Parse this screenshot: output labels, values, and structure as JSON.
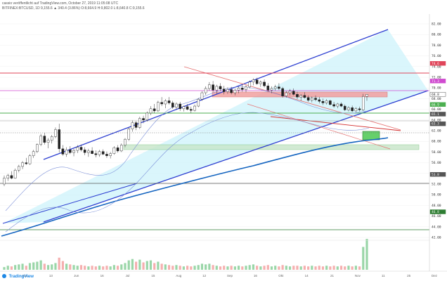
{
  "header": {
    "line1": "cassio veröffentlicht auf TradingView.com, October 27, 2019 11:05:08 UTC",
    "line2": "BITFINEX:BTCUSD, 1D  9,155.6  ▲ 340.4 (3.86%)  O:8,664.9 H:9,802.0 L:8,640.8 C:9,155.6"
  },
  "footer": {
    "brand": "TradingView"
  },
  "chart_data": {
    "type": "candlestick",
    "title": "",
    "price_axis_ticks": [
      82.0,
      80.0,
      78.0,
      76.0,
      74.0,
      72.0,
      70.0,
      68.0,
      66.0,
      64.0,
      62.0,
      60.0,
      58.0,
      56.0,
      54.0,
      52.0,
      50.0,
      48.0,
      46.0,
      44.0,
      42.0
    ],
    "price_markers": [
      {
        "value": 74.6,
        "color": "#e0455a"
      },
      {
        "value": 71.3,
        "color": "#d04bd0"
      },
      {
        "value": 68.8,
        "color": "#ffffff"
      },
      {
        "value": 66.9,
        "color": "#4caf50"
      },
      {
        "value": 65.1,
        "color": "#555555"
      },
      {
        "value": 63.3,
        "color": "#555555"
      },
      {
        "value": 53.8,
        "color": "#555555"
      },
      {
        "value": 46.8,
        "color": "#2e7d32"
      }
    ],
    "x_labels": [
      "Mai",
      "13",
      "Jun",
      "16",
      "Jul",
      "15",
      "Aug",
      "12",
      "Sep",
      "16",
      "Okt",
      "14",
      "21",
      "Nov",
      "11",
      "25",
      "Dez"
    ],
    "candles": [
      [
        52.0,
        53.6,
        51.6,
        53.1
      ],
      [
        53.1,
        53.9,
        52.6,
        53.6
      ],
      [
        53.6,
        54.4,
        52.9,
        53.1
      ],
      [
        53.1,
        54.9,
        53.0,
        54.6
      ],
      [
        54.6,
        55.6,
        54.2,
        55.3
      ],
      [
        55.3,
        56.3,
        54.8,
        56.0
      ],
      [
        56.0,
        56.9,
        55.6,
        55.8
      ],
      [
        55.8,
        57.6,
        55.6,
        57.3
      ],
      [
        57.3,
        58.4,
        56.9,
        58.1
      ],
      [
        58.1,
        59.6,
        57.8,
        59.4
      ],
      [
        59.4,
        61.4,
        59.1,
        61.0
      ],
      [
        61.0,
        61.6,
        59.4,
        59.8
      ],
      [
        59.8,
        60.6,
        58.7,
        60.2
      ],
      [
        60.2,
        61.2,
        59.6,
        60.9
      ],
      [
        60.9,
        62.6,
        60.6,
        62.2
      ],
      [
        62.2,
        63.3,
        57.9,
        58.6
      ],
      [
        58.6,
        59.3,
        57.3,
        57.6
      ],
      [
        57.6,
        58.9,
        57.1,
        58.4
      ],
      [
        58.4,
        59.1,
        57.6,
        57.9
      ],
      [
        57.9,
        58.6,
        57.2,
        58.3
      ],
      [
        58.3,
        59.3,
        57.8,
        58.9
      ],
      [
        58.9,
        59.4,
        58.1,
        58.4
      ],
      [
        58.4,
        58.9,
        57.4,
        57.9
      ],
      [
        57.9,
        58.6,
        57.1,
        58.2
      ],
      [
        58.2,
        58.9,
        57.6,
        57.7
      ],
      [
        57.7,
        58.3,
        57.0,
        57.5
      ],
      [
        57.5,
        58.4,
        57.1,
        58.1
      ],
      [
        58.1,
        58.5,
        57.4,
        57.6
      ],
      [
        57.6,
        58.1,
        56.9,
        57.3
      ],
      [
        57.3,
        58.0,
        56.8,
        57.7
      ],
      [
        57.7,
        59.1,
        57.5,
        58.8
      ],
      [
        58.8,
        59.3,
        57.9,
        58.2
      ],
      [
        58.2,
        59.6,
        58.0,
        59.3
      ],
      [
        59.3,
        60.6,
        58.9,
        60.4
      ],
      [
        60.4,
        62.6,
        60.1,
        62.3
      ],
      [
        62.3,
        63.9,
        61.8,
        63.5
      ],
      [
        63.5,
        63.8,
        62.1,
        62.6
      ],
      [
        62.6,
        64.6,
        62.3,
        64.3
      ],
      [
        64.3,
        64.8,
        63.4,
        64.0
      ],
      [
        64.0,
        65.6,
        63.7,
        65.3
      ],
      [
        65.3,
        66.6,
        64.9,
        66.1
      ],
      [
        66.1,
        67.0,
        65.3,
        65.7
      ],
      [
        65.7,
        67.6,
        65.5,
        67.3
      ],
      [
        67.3,
        68.3,
        66.6,
        67.0
      ],
      [
        67.0,
        67.9,
        66.2,
        67.6
      ],
      [
        67.6,
        68.3,
        66.9,
        67.2
      ],
      [
        67.2,
        67.6,
        66.1,
        66.4
      ],
      [
        66.4,
        67.3,
        65.9,
        67.0
      ],
      [
        67.0,
        67.4,
        65.7,
        66.1
      ],
      [
        66.1,
        66.7,
        65.6,
        66.5
      ],
      [
        66.5,
        67.0,
        65.8,
        66.0
      ],
      [
        66.0,
        66.5,
        65.3,
        65.8
      ],
      [
        65.8,
        66.9,
        65.6,
        66.6
      ],
      [
        66.6,
        68.1,
        66.4,
        67.9
      ],
      [
        67.9,
        69.4,
        67.6,
        69.1
      ],
      [
        69.1,
        70.3,
        68.7,
        69.9
      ],
      [
        69.9,
        71.1,
        69.5,
        70.6
      ],
      [
        70.6,
        71.3,
        69.3,
        69.6
      ],
      [
        69.6,
        70.6,
        68.9,
        70.3
      ],
      [
        70.3,
        70.9,
        69.4,
        69.8
      ],
      [
        69.8,
        70.4,
        68.8,
        69.3
      ],
      [
        69.3,
        70.1,
        68.9,
        69.7
      ],
      [
        69.7,
        70.2,
        68.8,
        69.1
      ],
      [
        69.1,
        69.9,
        68.6,
        69.6
      ],
      [
        69.6,
        70.3,
        69.0,
        70.0
      ],
      [
        70.0,
        70.6,
        69.3,
        69.7
      ],
      [
        69.7,
        70.5,
        69.2,
        70.2
      ],
      [
        70.2,
        71.4,
        69.9,
        71.1
      ],
      [
        71.1,
        71.8,
        70.5,
        71.5
      ],
      [
        71.5,
        71.9,
        70.6,
        70.8
      ],
      [
        70.8,
        71.4,
        70.2,
        71.1
      ],
      [
        71.1,
        71.6,
        70.1,
        70.4
      ],
      [
        70.4,
        70.9,
        69.3,
        69.6
      ],
      [
        69.6,
        70.3,
        69.0,
        69.9
      ],
      [
        69.9,
        70.6,
        69.5,
        70.2
      ],
      [
        70.2,
        70.9,
        69.6,
        69.9
      ],
      [
        69.9,
        70.2,
        68.2,
        68.5
      ],
      [
        68.5,
        69.4,
        68.2,
        69.1
      ],
      [
        69.1,
        69.8,
        68.6,
        69.4
      ],
      [
        69.4,
        69.9,
        68.6,
        68.8
      ],
      [
        68.8,
        69.3,
        67.9,
        68.3
      ],
      [
        68.3,
        68.8,
        67.6,
        68.6
      ],
      [
        68.6,
        69.2,
        68.0,
        68.2
      ],
      [
        68.2,
        68.6,
        67.4,
        67.7
      ],
      [
        67.7,
        68.4,
        67.3,
        68.1
      ],
      [
        68.1,
        68.6,
        67.5,
        67.8
      ],
      [
        67.8,
        68.3,
        67.1,
        67.5
      ],
      [
        67.5,
        68.0,
        66.8,
        67.2
      ],
      [
        67.2,
        67.9,
        66.9,
        67.6
      ],
      [
        67.6,
        67.8,
        66.7,
        66.9
      ],
      [
        66.9,
        67.4,
        66.3,
        66.6
      ],
      [
        66.6,
        67.2,
        66.2,
        67.0
      ],
      [
        67.0,
        67.3,
        66.4,
        66.6
      ],
      [
        66.6,
        66.9,
        65.7,
        65.9
      ],
      [
        65.9,
        66.6,
        65.6,
        66.3
      ],
      [
        66.3,
        66.7,
        65.5,
        65.7
      ],
      [
        65.7,
        66.4,
        65.4,
        66.1
      ],
      [
        66.1,
        66.5,
        65.6,
        65.9
      ],
      [
        65.9,
        68.9,
        65.7,
        68.4
      ],
      [
        68.4,
        68.8,
        67.6,
        68.8
      ]
    ],
    "volume": [
      4,
      6,
      5,
      7,
      8,
      9,
      6,
      10,
      11,
      12,
      14,
      9,
      7,
      8,
      10,
      18,
      13,
      9,
      8,
      7,
      6,
      7,
      6,
      5,
      6,
      5,
      6,
      5,
      6,
      5,
      7,
      6,
      8,
      10,
      14,
      16,
      12,
      15,
      11,
      13,
      14,
      10,
      12,
      9,
      8,
      7,
      6,
      7,
      6,
      5,
      6,
      5,
      6,
      7,
      9,
      8,
      9,
      7,
      6,
      5,
      6,
      5,
      6,
      5,
      6,
      5,
      6,
      7,
      8,
      6,
      5,
      6,
      7,
      5,
      6,
      5,
      7,
      6,
      5,
      6,
      6,
      5,
      6,
      5,
      6,
      5,
      6,
      5,
      6,
      5,
      6,
      5,
      6,
      5,
      6,
      5,
      6,
      5,
      34,
      46
    ]
  }
}
